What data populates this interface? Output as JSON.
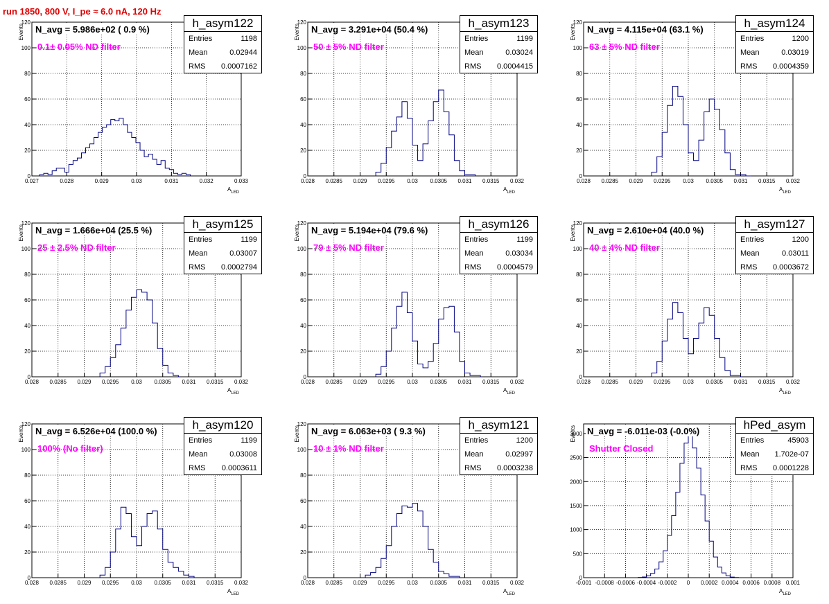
{
  "page_title": "run 1850,   800 V, I_pe ≈ 6.0 nA, 120 Hz",
  "stat_labels": {
    "entries": "Entries",
    "mean": "Mean",
    "rms": "RMS"
  },
  "ylabel": "Events",
  "xlabel_main": "A",
  "xlabel_sub": "LED",
  "colors": {
    "title": "#e00000",
    "filter": "#ff00ff",
    "hist": "#000080",
    "grid": "#000000"
  },
  "chart_data": [
    {
      "type": "bar",
      "name": "h_asym122",
      "navg": "N_avg = 5.986e+02 ( 0.9 %)",
      "filter": "0.1± 0.05% ND filter",
      "entries": "1198",
      "mean": "0.02944",
      "rms": "0.0007162",
      "xlim": [
        0.027,
        0.033
      ],
      "ylim": [
        0,
        120
      ],
      "xticks": [
        "0.027",
        "0.028",
        "0.029",
        "0.03",
        "0.031",
        "0.032",
        "0.033"
      ],
      "yticks": [
        "0",
        "20",
        "40",
        "60",
        "80",
        "100",
        "120"
      ],
      "x": [
        0.02728,
        0.0274,
        0.02752,
        0.02764,
        0.02776,
        0.02788,
        0.028,
        0.02812,
        0.02824,
        0.02836,
        0.02848,
        0.0286,
        0.02872,
        0.02884,
        0.02896,
        0.02908,
        0.0292,
        0.02932,
        0.02944,
        0.02956,
        0.02968,
        0.0298,
        0.02992,
        0.03004,
        0.03016,
        0.03028,
        0.0304,
        0.03052,
        0.03064,
        0.03076,
        0.03088,
        0.031,
        0.03112,
        0.03124,
        0.03136,
        0.03148
      ],
      "values": [
        1,
        2,
        1,
        4,
        6,
        6,
        3,
        9,
        12,
        14,
        18,
        22,
        25,
        30,
        34,
        38,
        40,
        44,
        43,
        45,
        40,
        34,
        30,
        26,
        20,
        15,
        17,
        13,
        9,
        12,
        6,
        5,
        2,
        1,
        2,
        1
      ]
    },
    {
      "type": "bar",
      "name": "h_asym123",
      "navg": "N_avg = 3.291e+04 (50.4 %)",
      "filter": "50 ± 5% ND filter",
      "entries": "1199",
      "mean": "0.03024",
      "rms": "0.0004415",
      "xlim": [
        0.028,
        0.032
      ],
      "ylim": [
        0,
        120
      ],
      "xticks": [
        "0.028",
        "0.0285",
        "0.029",
        "0.0295",
        "0.03",
        "0.0305",
        "0.031",
        "0.0315",
        "0.032"
      ],
      "yticks": [
        "0",
        "20",
        "40",
        "60",
        "80",
        "100",
        "120"
      ],
      "x": [
        0.02935,
        0.02945,
        0.02955,
        0.02965,
        0.02975,
        0.02985,
        0.02995,
        0.03005,
        0.03015,
        0.03025,
        0.03035,
        0.03045,
        0.03055,
        0.03065,
        0.03075,
        0.03085,
        0.03095,
        0.03105,
        0.03115
      ],
      "values": [
        3,
        10,
        22,
        35,
        46,
        58,
        45,
        24,
        12,
        25,
        43,
        58,
        67,
        50,
        32,
        12,
        4,
        1,
        1
      ]
    },
    {
      "type": "bar",
      "name": "h_asym124",
      "navg": "N_avg = 4.115e+04 (63.1 %)",
      "filter": "63 ± 5% ND filter",
      "entries": "1200",
      "mean": "0.03019",
      "rms": "0.0004359",
      "xlim": [
        0.028,
        0.032
      ],
      "ylim": [
        0,
        120
      ],
      "xticks": [
        "0.028",
        "0.0285",
        "0.029",
        "0.0295",
        "0.03",
        "0.0305",
        "0.031",
        "0.0315",
        "0.032"
      ],
      "yticks": [
        "0",
        "20",
        "40",
        "60",
        "80",
        "100",
        "120"
      ],
      "x": [
        0.02935,
        0.02945,
        0.02955,
        0.02965,
        0.02975,
        0.02985,
        0.02995,
        0.03005,
        0.03015,
        0.03025,
        0.03035,
        0.03045,
        0.03055,
        0.03065,
        0.03075,
        0.03085,
        0.03095,
        0.03105,
        0.03115
      ],
      "values": [
        3,
        15,
        34,
        55,
        70,
        62,
        40,
        18,
        12,
        28,
        50,
        60,
        52,
        36,
        18,
        5,
        1,
        1,
        0
      ]
    },
    {
      "type": "bar",
      "name": "h_asym125",
      "navg": "N_avg = 1.666e+04 (25.5 %)",
      "filter": "25 ± 2.5% ND filter",
      "entries": "1199",
      "mean": "0.03007",
      "rms": "0.0002794",
      "xlim": [
        0.028,
        0.032
      ],
      "ylim": [
        0,
        120
      ],
      "xticks": [
        "0.028",
        "0.0285",
        "0.029",
        "0.0295",
        "0.03",
        "0.0305",
        "0.031",
        "0.0315",
        "0.032"
      ],
      "yticks": [
        "0",
        "20",
        "40",
        "60",
        "80",
        "100",
        "120"
      ],
      "x": [
        0.02935,
        0.02945,
        0.02955,
        0.02965,
        0.02975,
        0.02985,
        0.02995,
        0.03005,
        0.03015,
        0.03025,
        0.03035,
        0.03045,
        0.03055,
        0.03065,
        0.03075
      ],
      "values": [
        3,
        8,
        15,
        25,
        38,
        52,
        62,
        68,
        66,
        60,
        42,
        22,
        9,
        3,
        1
      ]
    },
    {
      "type": "bar",
      "name": "h_asym126",
      "navg": "N_avg = 5.194e+04 (79.6 %)",
      "filter": "79 ± 5% ND filter",
      "entries": "1199",
      "mean": "0.03034",
      "rms": "0.0004579",
      "xlim": [
        0.028,
        0.032
      ],
      "ylim": [
        0,
        120
      ],
      "xticks": [
        "0.028",
        "0.0285",
        "0.029",
        "0.0295",
        "0.03",
        "0.0305",
        "0.031",
        "0.0315",
        "0.032"
      ],
      "yticks": [
        "0",
        "20",
        "40",
        "60",
        "80",
        "100",
        "120"
      ],
      "x": [
        0.02935,
        0.02945,
        0.02955,
        0.02965,
        0.02975,
        0.02985,
        0.02995,
        0.03005,
        0.03015,
        0.03025,
        0.03035,
        0.03045,
        0.03055,
        0.03065,
        0.03075,
        0.03085,
        0.03095,
        0.03105,
        0.03115,
        0.03125
      ],
      "values": [
        2,
        8,
        20,
        38,
        55,
        66,
        50,
        28,
        10,
        7,
        12,
        26,
        45,
        54,
        55,
        35,
        12,
        3,
        1,
        1
      ]
    },
    {
      "type": "bar",
      "name": "h_asym127",
      "navg": "N_avg = 2.610e+04 (40.0 %)",
      "filter": "40 ± 4% ND filter",
      "entries": "1200",
      "mean": "0.03011",
      "rms": "0.0003672",
      "xlim": [
        0.028,
        0.032
      ],
      "ylim": [
        0,
        120
      ],
      "xticks": [
        "0.028",
        "0.0285",
        "0.029",
        "0.0295",
        "0.03",
        "0.0305",
        "0.031",
        "0.0315",
        "0.032"
      ],
      "yticks": [
        "0",
        "20",
        "40",
        "60",
        "80",
        "100",
        "120"
      ],
      "x": [
        0.02935,
        0.02945,
        0.02955,
        0.02965,
        0.02975,
        0.02985,
        0.02995,
        0.03005,
        0.03015,
        0.03025,
        0.03035,
        0.03045,
        0.03055,
        0.03065,
        0.03075,
        0.03085,
        0.03095
      ],
      "values": [
        3,
        12,
        28,
        45,
        58,
        50,
        30,
        18,
        30,
        42,
        54,
        48,
        30,
        15,
        5,
        1,
        1
      ]
    },
    {
      "type": "bar",
      "name": "h_asym120",
      "navg": "N_avg = 6.526e+04 (100.0 %)",
      "filter": "100% (No filter)",
      "entries": "1199",
      "mean": "0.03008",
      "rms": "0.0003611",
      "xlim": [
        0.028,
        0.032
      ],
      "ylim": [
        0,
        120
      ],
      "xticks": [
        "0.028",
        "0.0285",
        "0.029",
        "0.0295",
        "0.03",
        "0.0305",
        "0.031",
        "0.0315",
        "0.032"
      ],
      "yticks": [
        "0",
        "20",
        "40",
        "60",
        "80",
        "100",
        "120"
      ],
      "x": [
        0.02935,
        0.02945,
        0.02955,
        0.02965,
        0.02975,
        0.02985,
        0.02995,
        0.03005,
        0.03015,
        0.03025,
        0.03035,
        0.03045,
        0.03055,
        0.03065,
        0.03075,
        0.03085,
        0.03095,
        0.03105
      ],
      "values": [
        2,
        8,
        20,
        38,
        55,
        50,
        32,
        25,
        40,
        50,
        52,
        38,
        22,
        12,
        8,
        5,
        2,
        1
      ]
    },
    {
      "type": "bar",
      "name": "h_asym121",
      "navg": "N_avg = 6.063e+03 ( 9.3 %)",
      "filter": "10 ± 1% ND filter",
      "entries": "1200",
      "mean": "0.02997",
      "rms": "0.0003238",
      "xlim": [
        0.028,
        0.032
      ],
      "ylim": [
        0,
        120
      ],
      "xticks": [
        "0.028",
        "0.0285",
        "0.029",
        "0.0295",
        "0.03",
        "0.0305",
        "0.031",
        "0.0315",
        "0.032"
      ],
      "yticks": [
        "0",
        "20",
        "40",
        "60",
        "80",
        "100",
        "120"
      ],
      "x": [
        0.02915,
        0.02925,
        0.02935,
        0.02945,
        0.02955,
        0.02965,
        0.02975,
        0.02985,
        0.02995,
        0.03005,
        0.03015,
        0.03025,
        0.03035,
        0.03045,
        0.03055,
        0.03065,
        0.03075,
        0.03085
      ],
      "values": [
        2,
        4,
        8,
        15,
        25,
        40,
        50,
        56,
        55,
        58,
        52,
        40,
        22,
        12,
        5,
        3,
        1,
        1
      ]
    },
    {
      "type": "bar",
      "name": "hPed_asym",
      "navg": "N_avg = -6.011e-03 (-0.0%)",
      "filter": "Shutter Closed",
      "entries": "45903",
      "mean": "1.702e-07",
      "rms": "0.0001228",
      "xlim": [
        -0.001,
        0.001
      ],
      "ylim": [
        0,
        3200
      ],
      "xticks": [
        "-0.001",
        "-0.0008",
        "-0.0006",
        "-0.0004",
        "-0.0002",
        "0",
        "0.0002",
        "0.0004",
        "0.0006",
        "0.0008",
        "0.001"
      ],
      "yticks": [
        "0",
        "500",
        "1000",
        "1500",
        "2000",
        "2500",
        "3000"
      ],
      "x": [
        -0.00046,
        -0.00042,
        -0.00038,
        -0.00034,
        -0.0003,
        -0.00026,
        -0.00022,
        -0.00018,
        -0.00014,
        -0.0001,
        -6e-05,
        -2e-05,
        2e-05,
        6e-05,
        0.0001,
        0.00014,
        0.00018,
        0.00022,
        0.00026,
        0.0003,
        0.00034,
        0.00038,
        0.00042,
        0.00046
      ],
      "values": [
        5,
        15,
        40,
        90,
        180,
        330,
        560,
        880,
        1290,
        1780,
        2380,
        2800,
        2950,
        2700,
        2280,
        1720,
        1180,
        760,
        430,
        220,
        100,
        40,
        12,
        4
      ]
    }
  ]
}
